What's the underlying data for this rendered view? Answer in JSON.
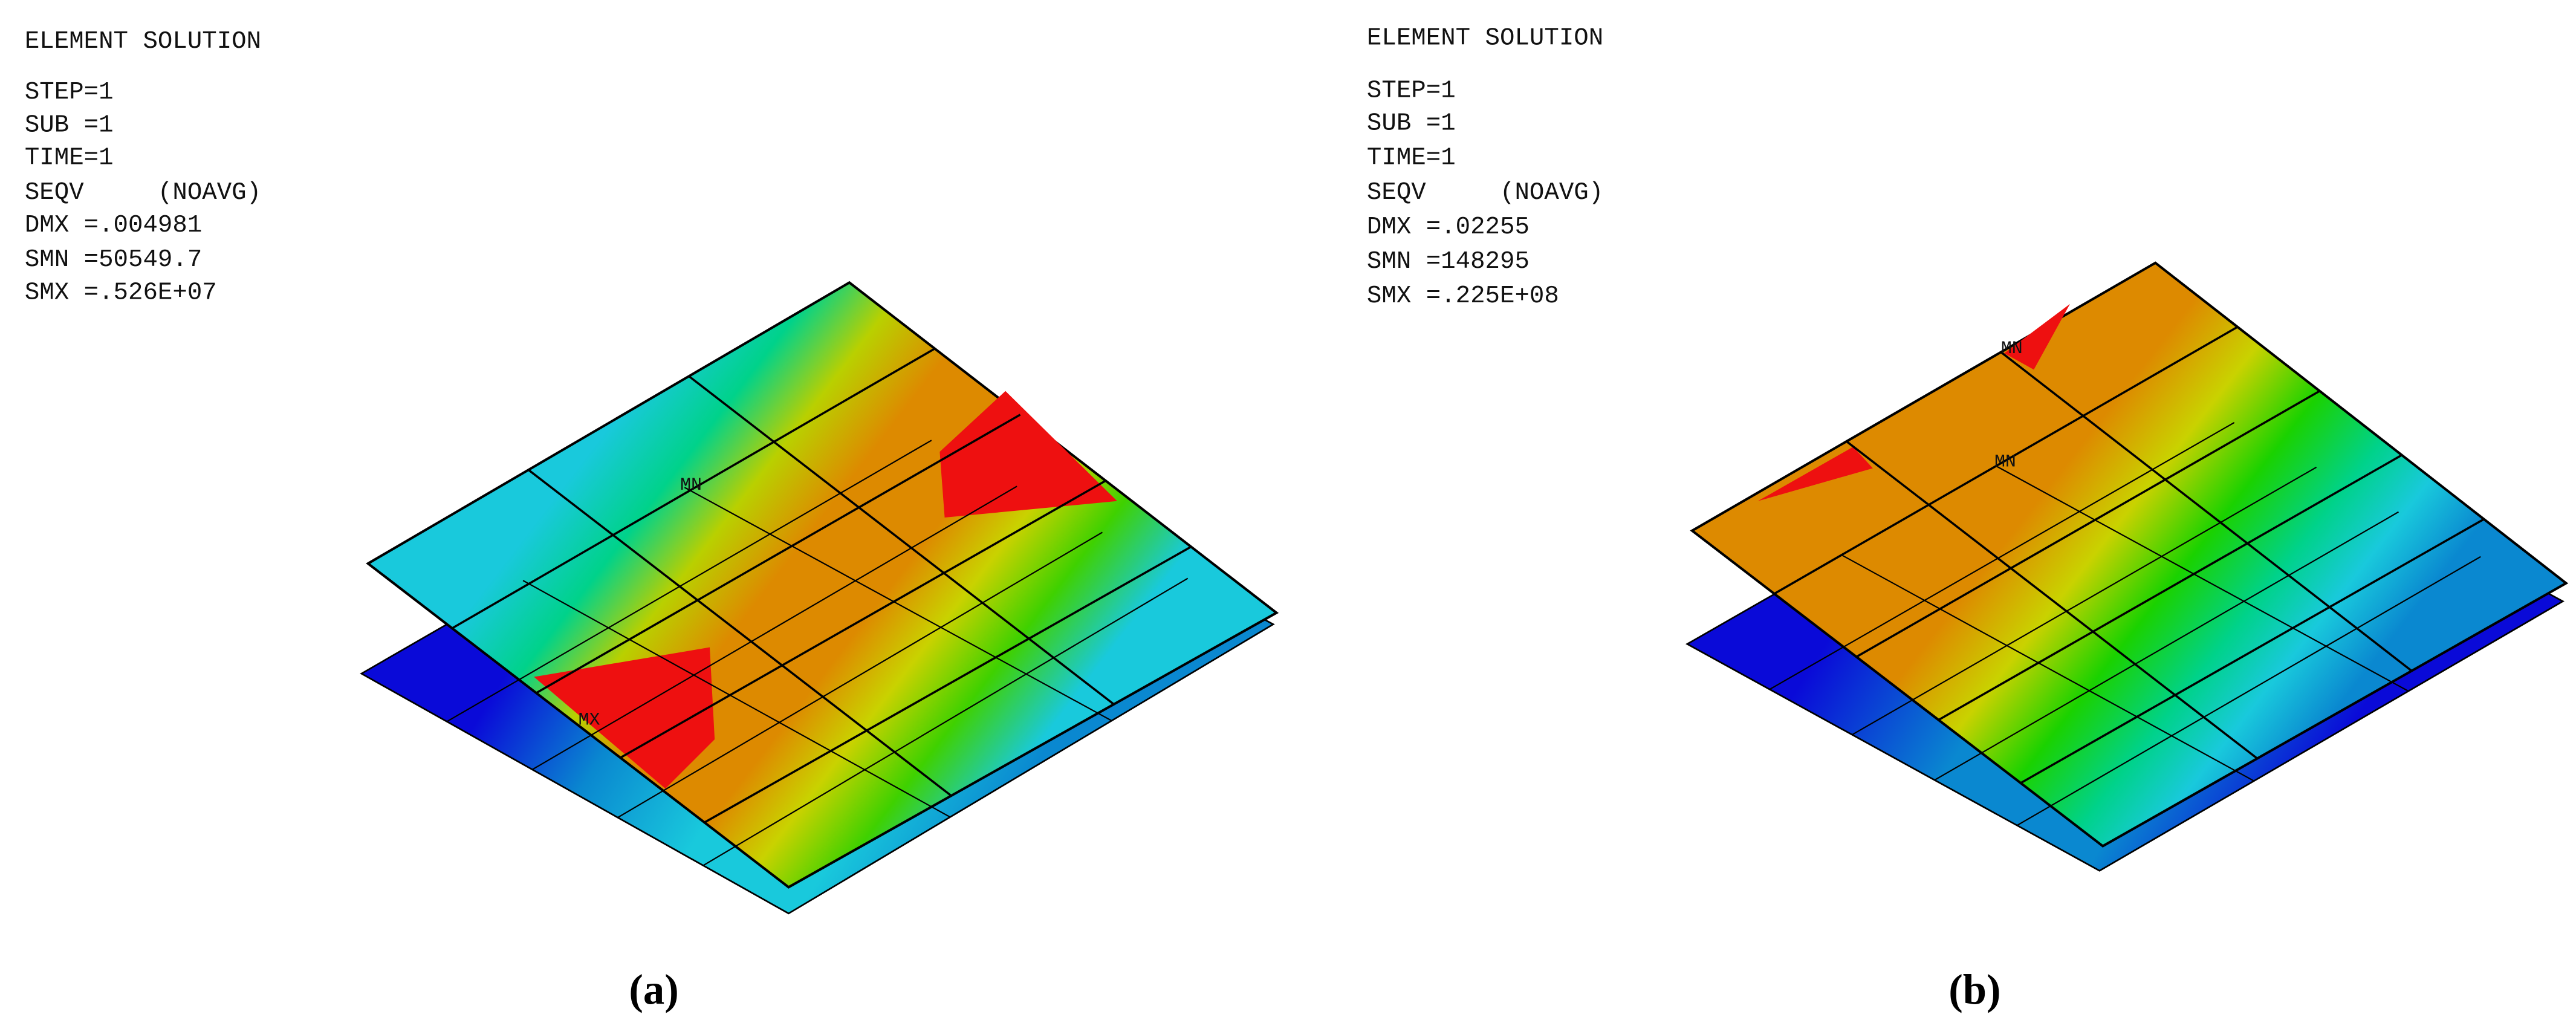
{
  "panels": [
    {
      "title": "ELEMENT SOLUTION",
      "lines": [
        "STEP=1",
        "SUB =1",
        "TIME=1",
        "SEQV     (NOAVG)",
        "DMX =.004981",
        "SMN =50549.7",
        "SMX =.526E+07"
      ],
      "labels": [
        "MN",
        "MX"
      ],
      "caption": "(a)"
    },
    {
      "title": "ELEMENT SOLUTION",
      "lines": [
        "STEP=1",
        "SUB =1",
        "TIME=1",
        "SEQV     (NOAVG)",
        "DMX =.02255",
        "SMN =148295",
        "SMX =.225E+08"
      ],
      "labels": [
        "MN",
        "MN"
      ],
      "caption": "(b)"
    }
  ]
}
